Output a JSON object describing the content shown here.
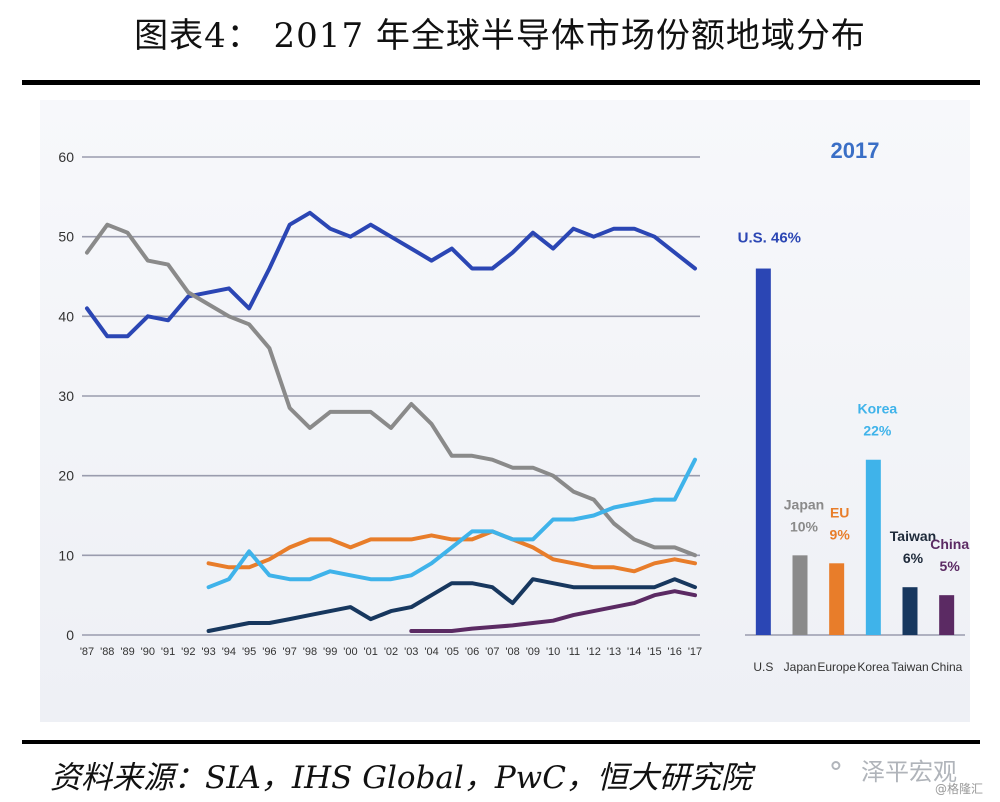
{
  "title": "图表4： 2017 年全球半导体市场份额地域分布",
  "source": "资料来源：SIA，IHS Global，PwC，恒大研究院",
  "watermark": {
    "icon": "wechat-bubble-icon",
    "name": "泽平宏观",
    "sub": "@格隆汇"
  },
  "colors": {
    "us": "#2b46b4",
    "japan": "#8a8a8a",
    "europe": "#e87d2a",
    "korea": "#3fb3ea",
    "taiwan": "#17375e",
    "china": "#5b2a63",
    "grid": "#9a9cae",
    "title_2017": "#3a6fc6"
  },
  "chart_data": [
    {
      "type": "line",
      "x": [
        "'87",
        "'88",
        "'89",
        "'90",
        "'91",
        "'92",
        "'93",
        "'94",
        "'95",
        "'96",
        "'97",
        "'98",
        "'99",
        "'00",
        "'01",
        "'02",
        "'03",
        "'04",
        "'05",
        "'06",
        "'07",
        "'08",
        "'09",
        "'10",
        "'11",
        "'12",
        "'13",
        "'14",
        "'15",
        "'16",
        "'17"
      ],
      "ylim": [
        0,
        60
      ],
      "yticks": [
        0,
        10,
        20,
        30,
        40,
        50,
        60
      ],
      "grid": true,
      "series": [
        {
          "key": "us",
          "values": [
            41,
            37.5,
            37.5,
            40,
            39.5,
            42.5,
            43,
            43.5,
            41,
            46,
            51.5,
            53,
            51,
            50,
            51.5,
            50,
            48.5,
            47,
            48.5,
            46,
            46,
            48,
            50.5,
            48.5,
            51,
            50,
            51,
            51,
            50,
            48,
            46
          ]
        },
        {
          "key": "japan",
          "values": [
            48,
            51.5,
            50.5,
            47,
            46.5,
            43,
            41.5,
            40,
            39,
            36,
            28.5,
            26,
            28,
            28,
            28,
            26,
            29,
            26.5,
            22.5,
            22.5,
            22,
            21,
            21,
            20,
            18,
            17,
            14,
            12,
            11,
            11,
            10
          ]
        },
        {
          "key": "europe",
          "values": [
            null,
            null,
            null,
            null,
            null,
            null,
            9,
            8.5,
            8.5,
            9.5,
            11,
            12,
            12,
            11,
            12,
            12,
            12,
            12.5,
            12,
            12,
            13,
            12,
            11,
            9.5,
            9,
            8.5,
            8.5,
            8,
            9,
            9.5,
            9
          ]
        },
        {
          "key": "korea",
          "values": [
            null,
            null,
            null,
            null,
            null,
            null,
            6,
            7,
            10.5,
            7.5,
            7,
            7,
            8,
            7.5,
            7,
            7,
            7.5,
            9,
            11,
            13,
            13,
            12,
            12,
            14.5,
            14.5,
            15,
            16,
            16.5,
            17,
            17,
            22
          ]
        },
        {
          "key": "taiwan",
          "values": [
            null,
            null,
            null,
            null,
            null,
            null,
            0.5,
            1,
            1.5,
            1.5,
            2,
            2.5,
            3,
            3.5,
            2,
            3,
            3.5,
            5,
            6.5,
            6.5,
            6,
            4,
            7,
            6.5,
            6,
            6,
            6,
            6,
            6,
            7,
            6
          ]
        },
        {
          "key": "china",
          "values": [
            null,
            null,
            null,
            null,
            null,
            null,
            null,
            null,
            null,
            null,
            null,
            null,
            null,
            null,
            null,
            null,
            0.5,
            0.5,
            0.5,
            0.8,
            1,
            1.2,
            1.5,
            1.8,
            2.5,
            3,
            3.5,
            4,
            5,
            5.5,
            5
          ]
        }
      ]
    },
    {
      "type": "bar",
      "title": "2017",
      "categories": [
        "U.S",
        "Japan",
        "Europe",
        "Korea",
        "Taiwan",
        "China"
      ],
      "values": [
        46,
        10,
        9,
        22,
        6,
        5
      ],
      "keys": [
        "us",
        "japan",
        "europe",
        "korea",
        "taiwan",
        "china"
      ],
      "labels": [
        {
          "name": "U.S.",
          "pct": "46%"
        },
        {
          "name": "Japan",
          "pct": "10%"
        },
        {
          "name": "EU",
          "pct": "9%"
        },
        {
          "name": "Korea",
          "pct": "22%"
        },
        {
          "name": "Taiwan",
          "pct": "6%"
        },
        {
          "name": "China",
          "pct": "5%"
        }
      ]
    }
  ]
}
